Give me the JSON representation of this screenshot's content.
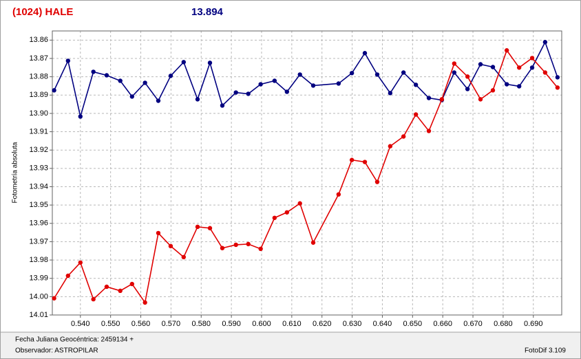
{
  "chart_data": {
    "type": "line",
    "title": "(1024) HALE",
    "subtitle": "13.894",
    "y_label": "Fotometría absoluta",
    "x": [
      0.5313,
      0.5359,
      0.54,
      0.5443,
      0.5487,
      0.5532,
      0.5571,
      0.5614,
      0.5658,
      0.5699,
      0.5742,
      0.5788,
      0.5829,
      0.587,
      0.5915,
      0.5956,
      0.5997,
      0.6043,
      0.6084,
      0.6127,
      0.6171,
      0.6255,
      0.6299,
      0.6342,
      0.6383,
      0.6426,
      0.647,
      0.6511,
      0.6554,
      0.6597,
      0.6638,
      0.6682,
      0.6725,
      0.6766,
      0.6812,
      0.6853,
      0.6896,
      0.6939,
      0.698
    ],
    "series": [
      {
        "color": "#000080",
        "values": [
          13.8874,
          13.8713,
          13.9017,
          13.8773,
          13.8792,
          13.8822,
          13.8908,
          13.8833,
          13.8931,
          13.8795,
          13.872,
          13.8923,
          13.8724,
          13.8957,
          13.8886,
          13.8893,
          13.8841,
          13.8822,
          13.8882,
          13.8788,
          13.8848,
          13.8837,
          13.878,
          13.8671,
          13.8788,
          13.8889,
          13.8777,
          13.8844,
          13.8916,
          13.8927,
          13.8777,
          13.8867,
          13.8732,
          13.8747,
          13.8841,
          13.8852,
          13.875,
          13.8611,
          13.8803
        ]
      },
      {
        "color": "#e00000",
        "values": [
          14.0009,
          13.9886,
          13.9814,
          14.0014,
          13.9946,
          13.9968,
          13.9931,
          14.0032,
          13.9653,
          13.9724,
          13.9784,
          13.9619,
          13.9626,
          13.9735,
          13.9717,
          13.9713,
          13.9739,
          13.957,
          13.954,
          13.9491,
          13.9705,
          13.9442,
          13.9254,
          13.9265,
          13.9374,
          13.9179,
          13.9126,
          13.9006,
          13.9096,
          13.8923,
          13.8728,
          13.8799,
          13.8923,
          13.8874,
          13.8656,
          13.875,
          13.8698,
          13.8777,
          13.8859
        ]
      }
    ],
    "xlim": [
      0.5307,
      0.6994
    ],
    "xticks": [
      {
        "value": 0.54,
        "label": "0.540"
      },
      {
        "value": 0.55,
        "label": "0.550"
      },
      {
        "value": 0.56,
        "label": "0.560"
      },
      {
        "value": 0.57,
        "label": "0.570"
      },
      {
        "value": 0.58,
        "label": "0.580"
      },
      {
        "value": 0.59,
        "label": "0.590"
      },
      {
        "value": 0.6,
        "label": "0.600"
      },
      {
        "value": 0.61,
        "label": "0.610"
      },
      {
        "value": 0.62,
        "label": "0.620"
      },
      {
        "value": 0.63,
        "label": "0.630"
      },
      {
        "value": 0.64,
        "label": "0.640"
      },
      {
        "value": 0.65,
        "label": "0.650"
      },
      {
        "value": 0.66,
        "label": "0.660"
      },
      {
        "value": 0.67,
        "label": "0.670"
      },
      {
        "value": 0.68,
        "label": "0.680"
      },
      {
        "value": 0.69,
        "label": "0.690"
      }
    ],
    "ylim": [
      14.01,
      13.855
    ],
    "yticks": [
      13.86,
      13.87,
      13.88,
      13.89,
      {
        "value": 13.9,
        "label": "13.90"
      },
      13.91,
      13.92,
      13.93,
      13.94,
      13.95,
      13.96,
      13.97,
      13.98,
      13.99,
      {
        "value": 14,
        "label": "14.00"
      },
      14.01
    ],
    "inverted_y": true,
    "grid": true
  },
  "footer": {
    "date": "Fecha Juliana Geocéntrica: 2459134 +",
    "observer": "Observador: ASTROPILAR",
    "software": "FotoDif 3.109"
  }
}
